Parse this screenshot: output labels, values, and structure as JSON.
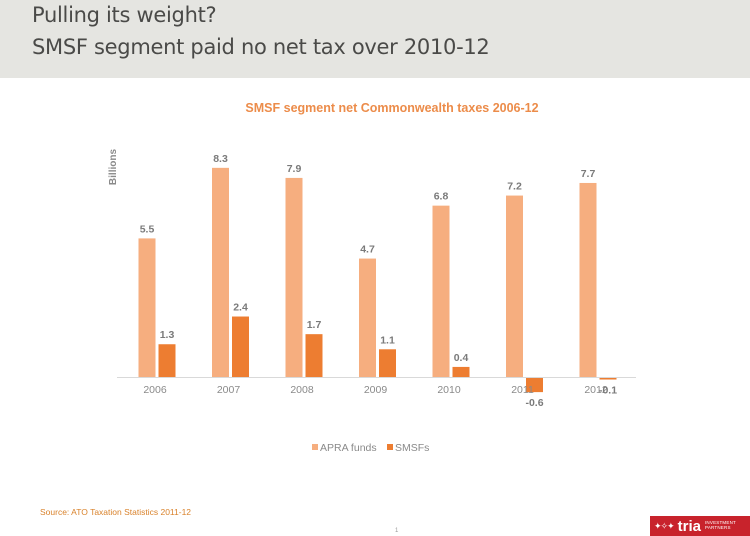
{
  "slide": {
    "title_line1": "Pulling its weight?",
    "title_line2": "SMSF segment paid no net tax over 2010-12",
    "source": "Source: ATO Taxation Statistics 2011-12",
    "page_number": "1",
    "logo": {
      "mark": "✦✧✦",
      "word": "tria",
      "sub_line1": "INVESTMENT",
      "sub_line2": "PARTNERS"
    }
  },
  "colors": {
    "apra": "#f6ae7f",
    "smsf": "#ed7d31",
    "header_band": "#e5e5e1",
    "logo_bg": "#c8232c"
  },
  "chart_data": {
    "type": "bar",
    "title": "SMSF segment net Commonwealth taxes 2006-12",
    "xlabel": "",
    "ylabel": "Billions",
    "categories": [
      "2006",
      "2007",
      "2008",
      "2009",
      "2010",
      "2011",
      "2012"
    ],
    "series": [
      {
        "name": "APRA funds",
        "values": [
          5.5,
          8.3,
          7.9,
          4.7,
          6.8,
          7.2,
          7.7
        ]
      },
      {
        "name": "SMSFs",
        "values": [
          1.3,
          2.4,
          1.7,
          1.1,
          0.4,
          -0.6,
          -0.1
        ]
      }
    ],
    "data_labels": true,
    "grid": false,
    "legend": "bottom"
  }
}
